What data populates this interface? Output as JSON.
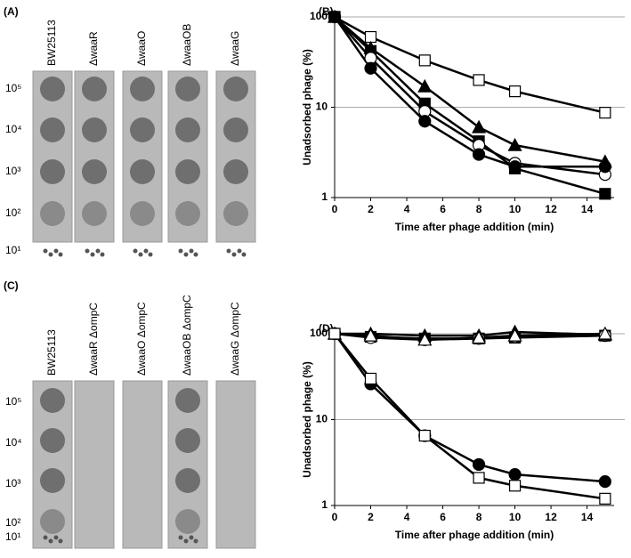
{
  "plates": [
    {
      "panel_label": "(A)",
      "strains": [
        "BW25113",
        "ΔwaaR",
        "ΔwaaO",
        "ΔwaaOB",
        "ΔwaaG"
      ],
      "dilutions": [
        "10⁵",
        "10⁴",
        "10³",
        "10²",
        "10¹"
      ]
    },
    {
      "panel_label": "(C)",
      "strains": [
        "BW25113",
        "ΔwaaR ΔompC",
        "ΔwaaO ΔompC",
        "ΔwaaOB ΔompC",
        "ΔwaaG ΔompC"
      ],
      "dilutions": [
        "10⁵",
        "10⁴",
        "10³",
        "10²",
        "10¹"
      ]
    }
  ],
  "chart_data": [
    {
      "type": "line",
      "panel_label": "(B)",
      "y_label": "Unadsorbed phage (%)",
      "x_label": "Time after phage addition (min)",
      "log_y": true,
      "grid": true,
      "xlim": [
        0,
        15.5
      ],
      "ylim": [
        1,
        100
      ],
      "xticks": [
        0,
        2,
        4,
        6,
        8,
        10,
        12,
        14
      ],
      "yticks": [
        1,
        10,
        100
      ],
      "x": [
        0,
        2,
        5,
        8,
        10,
        15
      ],
      "series": [
        {
          "marker": "square",
          "color": "#ffffff",
          "values": [
            100,
            60,
            33,
            20,
            15,
            8.7
          ]
        },
        {
          "marker": "triangle",
          "color": "#000000",
          "values": [
            100,
            45,
            17,
            6,
            3.8,
            2.5
          ]
        },
        {
          "marker": "square",
          "color": "#000000",
          "values": [
            100,
            42,
            11,
            4.2,
            2.1,
            1.1
          ]
        },
        {
          "marker": "circle",
          "color": "#ffffff",
          "values": [
            100,
            35,
            9,
            3.8,
            2.4,
            1.8
          ]
        },
        {
          "marker": "circle",
          "color": "#000000",
          "values": [
            100,
            27,
            7,
            3,
            2.2,
            2.2
          ]
        }
      ]
    },
    {
      "type": "line",
      "panel_label": "(D)",
      "y_label": "Unadsorbed phage (%)",
      "x_label": "Time after phage addition (min)",
      "log_y": true,
      "grid": true,
      "xlim": [
        0,
        15.5
      ],
      "ylim": [
        1,
        100
      ],
      "xticks": [
        0,
        2,
        4,
        6,
        8,
        10,
        12,
        14
      ],
      "yticks": [
        1,
        10,
        100
      ],
      "x": [
        0,
        2,
        5,
        8,
        10,
        15
      ],
      "series": [
        {
          "marker": "square",
          "color": "#000000",
          "values": [
            100,
            92,
            88,
            88,
            90,
            95
          ]
        },
        {
          "marker": "circle",
          "color": "#ffffff",
          "values": [
            100,
            90,
            85,
            88,
            92,
            95
          ]
        },
        {
          "marker": "triangle",
          "color": "#000000",
          "values": [
            100,
            100,
            95,
            95,
            105,
            97
          ]
        },
        {
          "marker": "triangle",
          "color": "#ffffff",
          "values": [
            100,
            95,
            85,
            90,
            95,
            100
          ]
        },
        {
          "marker": "circle",
          "color": "#000000",
          "values": [
            100,
            26,
            6.5,
            3,
            2.3,
            1.9
          ]
        },
        {
          "marker": "square",
          "color": "#ffffff",
          "values": [
            100,
            30,
            6.5,
            2.1,
            1.7,
            1.2
          ]
        }
      ]
    }
  ]
}
